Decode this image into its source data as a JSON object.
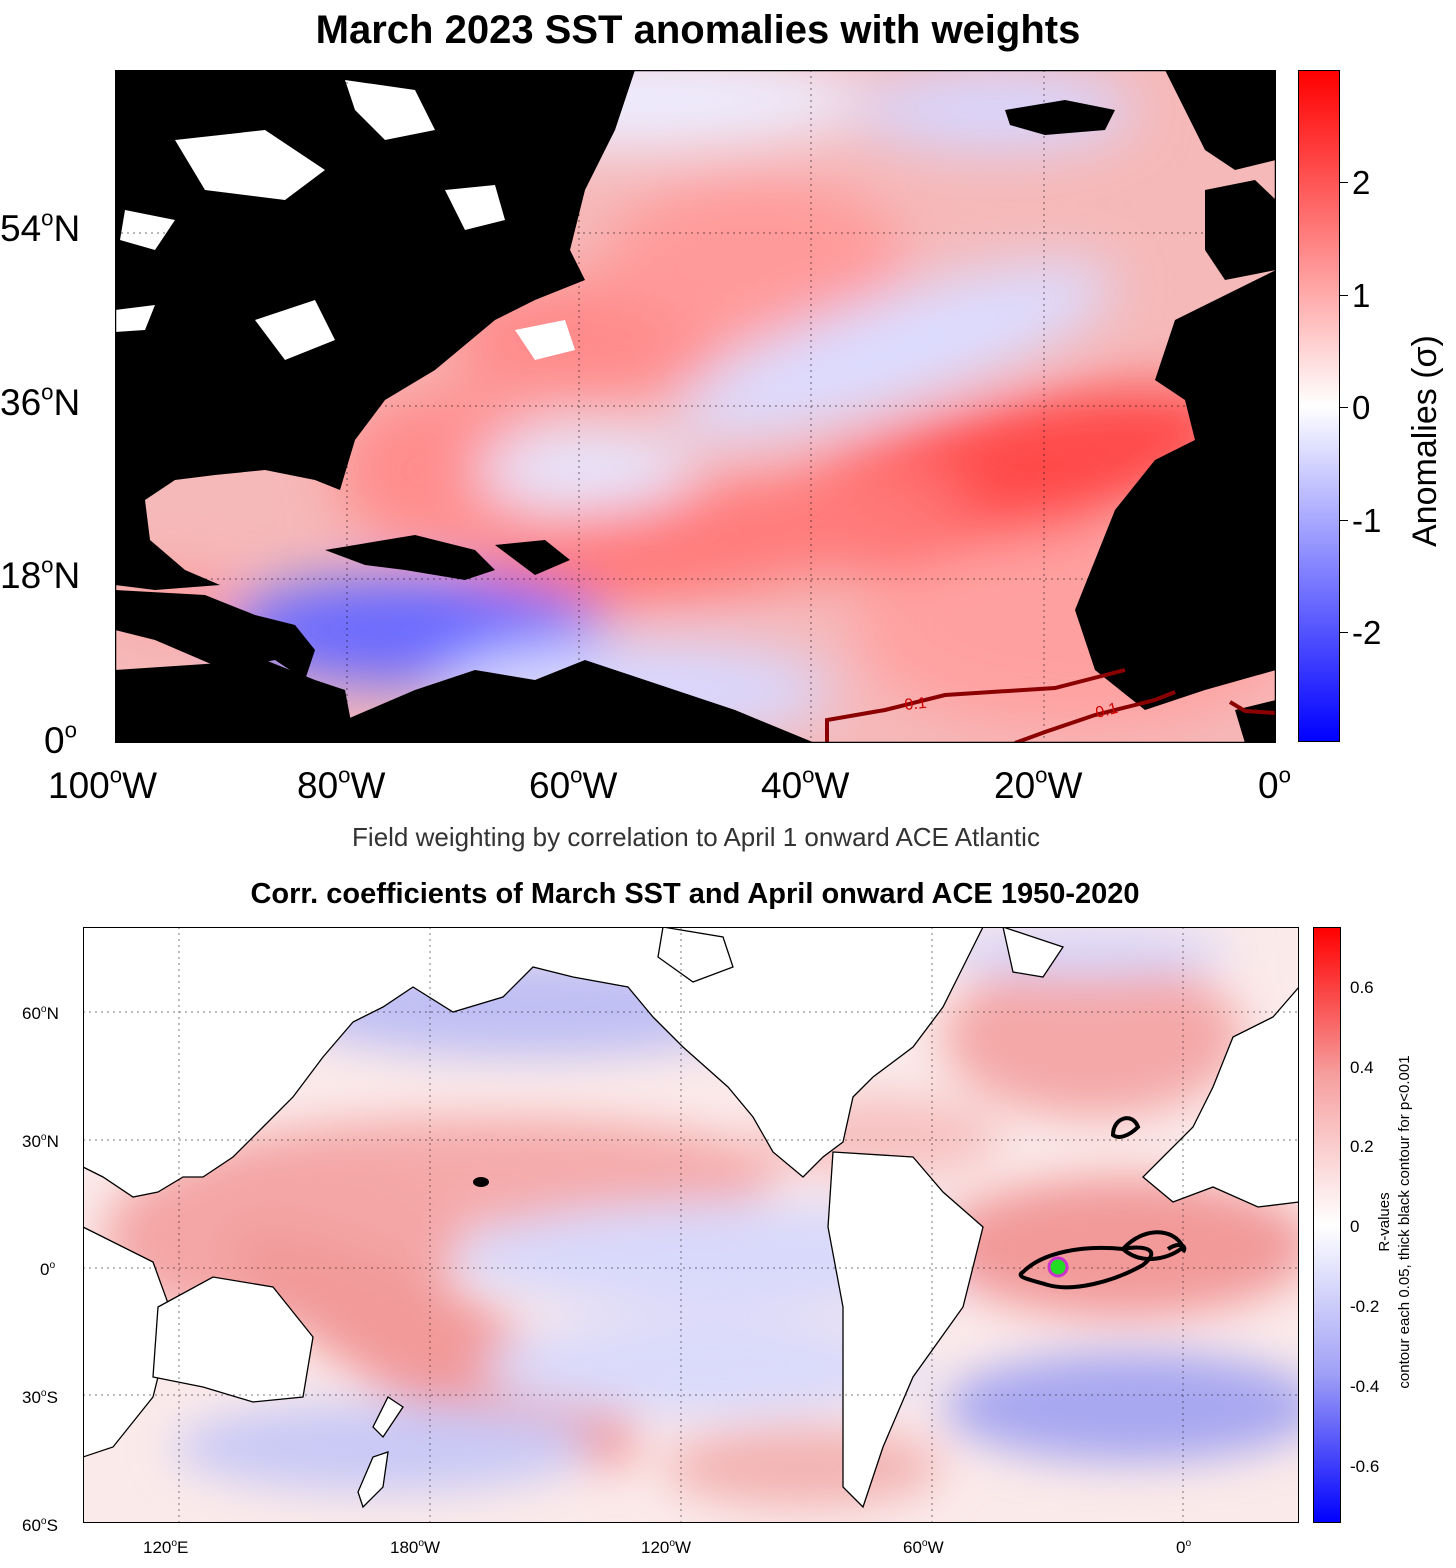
{
  "top_map": {
    "title": "March 2023 SST anomalies with weights",
    "lat_ticks": [
      {
        "deg": "54",
        "suffix": "N"
      },
      {
        "deg": "36",
        "suffix": "N"
      },
      {
        "deg": "18",
        "suffix": "N"
      },
      {
        "deg": "0",
        "suffix": ""
      }
    ],
    "lon_ticks": [
      {
        "deg": "100",
        "suffix": "W"
      },
      {
        "deg": "80",
        "suffix": "W"
      },
      {
        "deg": "60",
        "suffix": "W"
      },
      {
        "deg": "40",
        "suffix": "W"
      },
      {
        "deg": "20",
        "suffix": "W"
      },
      {
        "deg": "0",
        "suffix": ""
      }
    ],
    "contour_labels": [
      "0.1",
      "0.1"
    ],
    "colorbar": {
      "label": "Anomalies (σ)",
      "ticks": [
        "2",
        "1",
        "0",
        "-1",
        "-2"
      ],
      "min_color": "#0000ff",
      "mid_color": "#ffffff",
      "max_color": "#ff0000"
    },
    "caption": "Field weighting by correlation to April 1 onward ACE Atlantic"
  },
  "bottom_map": {
    "title": "Corr. coefficients of March SST and April onward ACE 1950-2020",
    "lat_ticks": [
      {
        "deg": "60",
        "suffix": "N"
      },
      {
        "deg": "30",
        "suffix": "N"
      },
      {
        "deg": "0",
        "suffix": ""
      },
      {
        "deg": "30",
        "suffix": "S"
      },
      {
        "deg": "60",
        "suffix": "S"
      }
    ],
    "lon_ticks": [
      {
        "deg": "120",
        "suffix": "E"
      },
      {
        "deg": "180",
        "suffix": "W"
      },
      {
        "deg": "120",
        "suffix": "W"
      },
      {
        "deg": "60",
        "suffix": "W"
      },
      {
        "deg": "0",
        "suffix": ""
      }
    ],
    "colorbar": {
      "label_line1": "R-values",
      "label_line2": "contour each 0.05, thick black contour for p<0.001",
      "ticks": [
        "0.6",
        "0.4",
        "0.2",
        "0",
        "-0.2",
        "-0.4",
        "-0.6"
      ],
      "marker_color": "#22dd22",
      "marker_ring_color": "#cc33cc"
    }
  }
}
